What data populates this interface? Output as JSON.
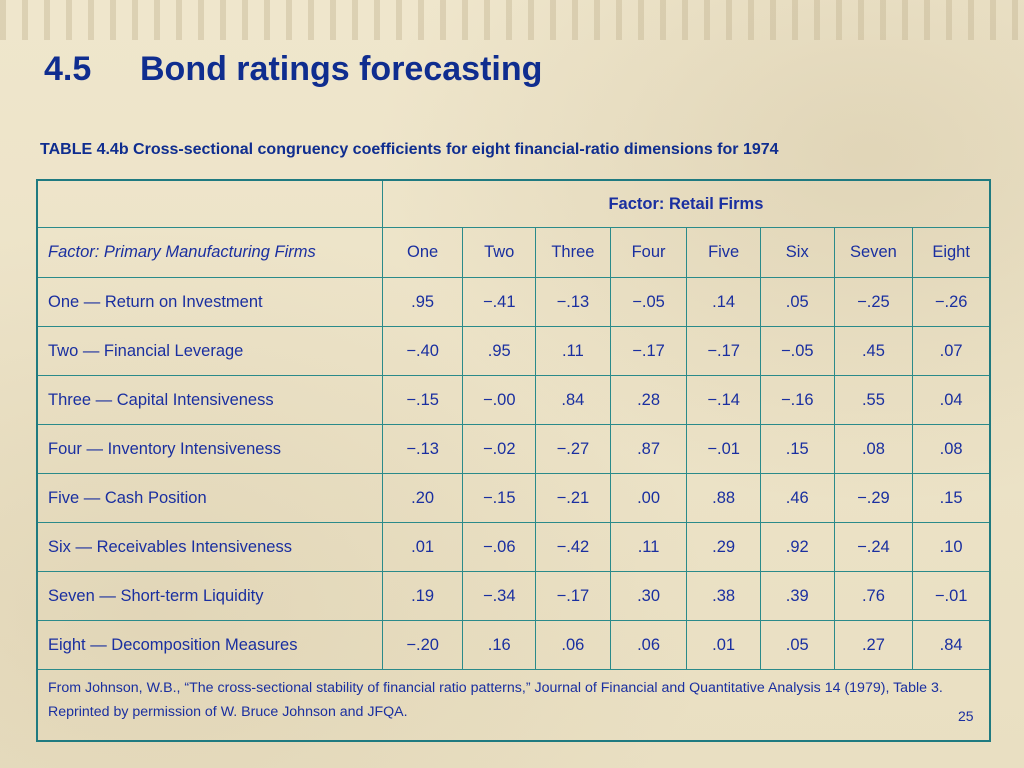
{
  "slide": {
    "title_number": "4.5",
    "title_text": "Bond ratings forecasting",
    "caption": "TABLE 4.4b  Cross-sectional congruency coefficients for eight financial-ratio dimensions for 1974",
    "page_number": "25"
  },
  "table": {
    "column_group_label": "Factor: Retail Firms",
    "row_header_label": "Factor: Primary Manufacturing Firms",
    "columns": [
      "One",
      "Two",
      "Three",
      "Four",
      "Five",
      "Six",
      "Seven",
      "Eight"
    ],
    "rows": [
      {
        "label": "One — Return on Investment",
        "values": [
          ".95",
          "−.41",
          "−.13",
          "−.05",
          ".14",
          ".05",
          "−.25",
          "−.26"
        ]
      },
      {
        "label": "Two — Financial Leverage",
        "values": [
          "−.40",
          ".95",
          ".11",
          "−.17",
          "−.17",
          "−.05",
          ".45",
          ".07"
        ]
      },
      {
        "label": "Three — Capital Intensiveness",
        "values": [
          "−.15",
          "−.00",
          ".84",
          ".28",
          "−.14",
          "−.16",
          ".55",
          ".04"
        ]
      },
      {
        "label": "Four — Inventory Intensiveness",
        "values": [
          "−.13",
          "−.02",
          "−.27",
          ".87",
          "−.01",
          ".15",
          ".08",
          ".08"
        ]
      },
      {
        "label": "Five — Cash Position",
        "values": [
          ".20",
          "−.15",
          "−.21",
          ".00",
          ".88",
          ".46",
          "−.29",
          ".15"
        ]
      },
      {
        "label": "Six — Receivables Intensiveness",
        "values": [
          ".01",
          "−.06",
          "−.42",
          ".11",
          ".29",
          ".92",
          "−.24",
          ".10"
        ]
      },
      {
        "label": "Seven — Short-term Liquidity",
        "values": [
          ".19",
          "−.34",
          "−.17",
          ".30",
          ".38",
          ".39",
          ".76",
          "−.01"
        ]
      },
      {
        "label": "Eight — Decomposition Measures",
        "values": [
          "−.20",
          ".16",
          ".06",
          ".06",
          ".01",
          ".05",
          ".27",
          ".84"
        ]
      }
    ],
    "source_note": "From Johnson, W.B., “The cross-sectional stability of financial ratio patterns,” Journal of Financial and Quantitative Analysis 14 (1979), Table 3.  Reprinted by permission of W. Bruce Johnson and JFQA."
  }
}
